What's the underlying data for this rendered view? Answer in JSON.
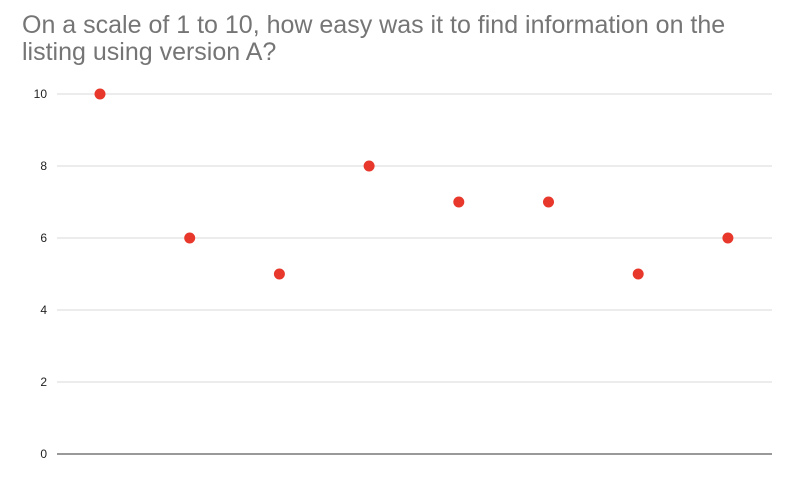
{
  "chart_data": {
    "type": "scatter",
    "title": "On a scale of 1 to 10, how easy was it to find information on the listing using version A?",
    "xlabel": "",
    "ylabel": "",
    "x": [
      1,
      2,
      3,
      4,
      5,
      6,
      7,
      8
    ],
    "series": [
      {
        "values": [
          10,
          6,
          5,
          8,
          7,
          7,
          5,
          6
        ]
      }
    ],
    "ylim": [
      0,
      10
    ],
    "yticks": [
      "0",
      "2",
      "4",
      "6",
      "8",
      "10"
    ],
    "grid": true,
    "legend": "none",
    "colors": {
      "point": "#e8382c",
      "grid": "#d9d9d9",
      "axis": "#333333",
      "title": "#757575"
    }
  }
}
